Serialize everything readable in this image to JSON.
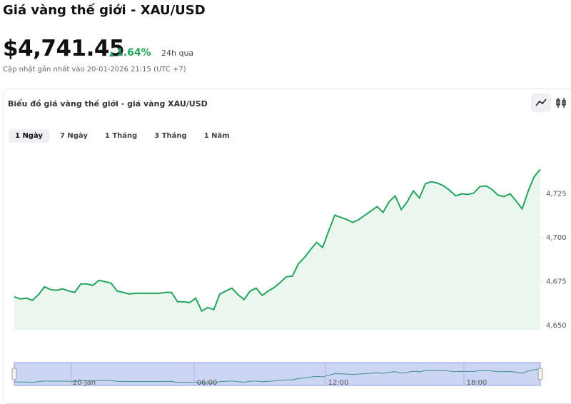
{
  "header": {
    "title": "Giá vàng thế giới - XAU/USD",
    "price": "$4,741.45",
    "change": "1.64%",
    "change_period": "24h qua",
    "updated": "Cập nhật gần nhất vào 20-01-2026 21:15 (UTC +7)"
  },
  "panel": {
    "title": "Biểu đồ giá vàng thế giới - giá vàng XAU/USD",
    "tabs": [
      "1 Ngày",
      "7 Ngày",
      "1 Tháng",
      "3 Tháng",
      "1 Năm"
    ],
    "active_tab": 0
  },
  "chart_data": {
    "type": "area",
    "color": "#22a55b",
    "fill": "#eaf6ee",
    "values": [
      4666.3,
      4665.1,
      4665.5,
      4664.3,
      4667.5,
      4672.0,
      4670.4,
      4670.0,
      4670.8,
      4669.6,
      4668.8,
      4673.6,
      4673.6,
      4672.8,
      4675.7,
      4674.9,
      4674.1,
      4669.6,
      4668.8,
      4667.9,
      4668.3,
      4668.3,
      4668.3,
      4668.3,
      4668.3,
      4668.8,
      4668.8,
      4663.5,
      4663.5,
      4663.0,
      4665.5,
      4658.2,
      4660.2,
      4659.0,
      4667.9,
      4669.6,
      4671.2,
      4667.5,
      4664.7,
      4669.6,
      4671.2,
      4667.1,
      4669.6,
      4671.6,
      4674.5,
      4677.7,
      4678.1,
      4685.1,
      4688.7,
      4693.2,
      4697.3,
      4694.4,
      4703.8,
      4712.8,
      4711.6,
      4710.3,
      4708.7,
      4710.3,
      4712.8,
      4715.2,
      4717.7,
      4714.4,
      4720.5,
      4723.8,
      4716.0,
      4720.5,
      4726.6,
      4722.6,
      4730.7,
      4731.9,
      4731.1,
      4729.5,
      4727.0,
      4723.8,
      4725.0,
      4724.6,
      4725.4,
      4729.1,
      4729.5,
      4727.5,
      4724.2,
      4723.4,
      4725.0,
      4720.9,
      4716.4,
      4726.6,
      4734.8,
      4738.9
    ],
    "ylim": [
      4647.5,
      4750
    ],
    "yticks": [
      {
        "value": 4650,
        "label": "4,650"
      },
      {
        "value": 4675,
        "label": "4,675"
      },
      {
        "value": 4700,
        "label": "4,700"
      },
      {
        "value": 4725,
        "label": "4,725"
      }
    ],
    "navigator_labels": [
      "20-Jan",
      "06:00",
      "12:00",
      "18:00"
    ]
  }
}
